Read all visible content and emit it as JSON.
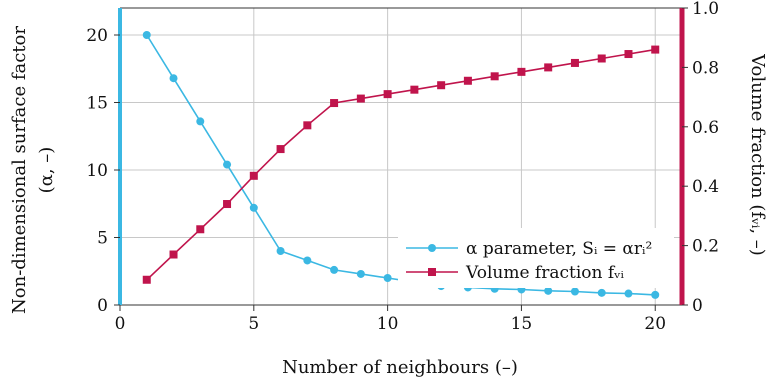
{
  "chart_data": {
    "type": "line",
    "xlabel": "Number of neighbours (–)",
    "ylabel_left_line1": "Non-dimensional surface factor",
    "ylabel_left_line2": "(α, –)",
    "ylabel_right": "Volume fraction (fᵥᵢ, –)",
    "xlim": [
      0,
      21
    ],
    "ylim_left": [
      0,
      22
    ],
    "ylim_right": [
      0,
      1.0
    ],
    "x_ticks": [
      "0",
      "5",
      "10",
      "15",
      "20"
    ],
    "y_left_ticks": [
      "0",
      "5",
      "10",
      "15",
      "20"
    ],
    "y_right_ticks": [
      "0",
      "0.2",
      "0.4",
      "0.6",
      "0.8",
      "1.0"
    ],
    "grid": true,
    "legend_position": "center-right",
    "colors": {
      "alpha": "#3bb8e3",
      "volume": "#c0144c"
    },
    "series": [
      {
        "name": "α parameter, Sᵢ = αrᵢ²",
        "axis": "left",
        "marker": "circle",
        "x": [
          1,
          2,
          3,
          4,
          5,
          6,
          7,
          8,
          9,
          10,
          11,
          12,
          13,
          14,
          15,
          16,
          17,
          18,
          19,
          20
        ],
        "values": [
          20.0,
          16.8,
          13.6,
          10.4,
          7.2,
          4.0,
          3.3,
          2.6,
          2.3,
          2.0,
          1.7,
          1.4,
          1.3,
          1.2,
          1.15,
          1.05,
          1.0,
          0.9,
          0.85,
          0.75
        ]
      },
      {
        "name": "Volume fraction fᵥᵢ",
        "axis": "right",
        "marker": "square",
        "x": [
          1,
          2,
          3,
          4,
          5,
          6,
          7,
          8,
          9,
          10,
          11,
          12,
          13,
          14,
          15,
          16,
          17,
          18,
          19,
          20
        ],
        "values": [
          0.085,
          0.17,
          0.255,
          0.34,
          0.435,
          0.525,
          0.605,
          0.68,
          0.695,
          0.71,
          0.725,
          0.74,
          0.755,
          0.77,
          0.785,
          0.8,
          0.815,
          0.83,
          0.845,
          0.86
        ]
      }
    ]
  }
}
